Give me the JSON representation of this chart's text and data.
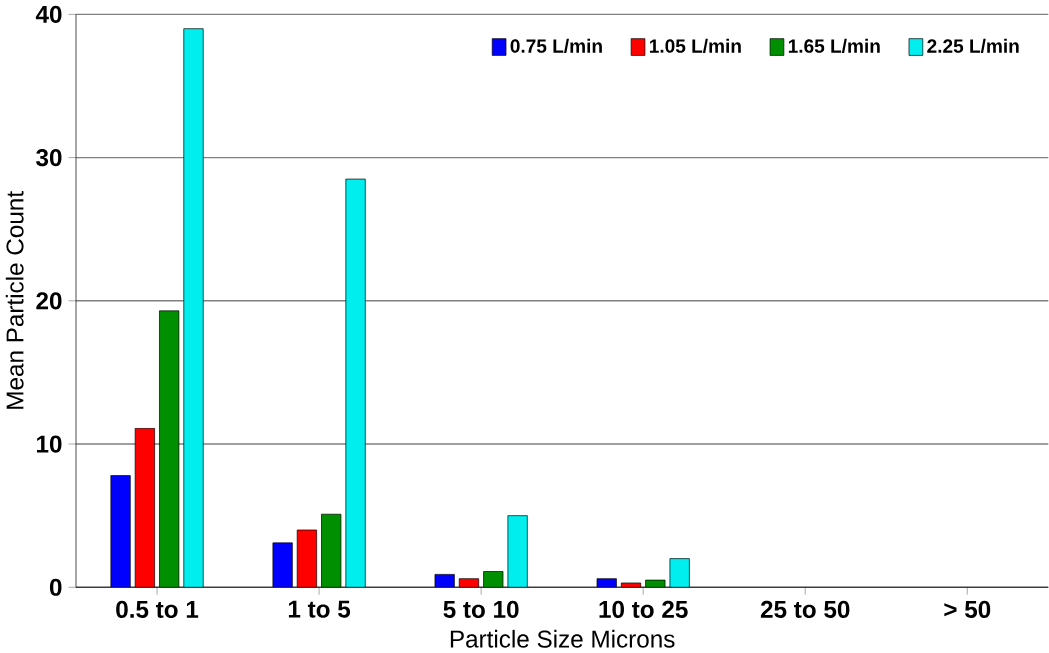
{
  "chart_data": {
    "type": "bar",
    "xlabel": "Particle Size Microns",
    "ylabel": "Mean Particle Count",
    "categories": [
      "0.5 to 1",
      "1 to 5",
      "5 to 10",
      "10 to 25",
      "25 to 50",
      "> 50"
    ],
    "series": [
      {
        "name": "0.75 L/min",
        "color": "#0000ff",
        "values": [
          7.8,
          3.1,
          0.9,
          0.6,
          null,
          null
        ]
      },
      {
        "name": "1.05 L/min",
        "color": "#ff0000",
        "values": [
          11.1,
          4.0,
          0.6,
          0.3,
          null,
          null
        ]
      },
      {
        "name": "1.65 L/min",
        "color": "#008f00",
        "values": [
          19.3,
          5.1,
          1.1,
          0.5,
          null,
          null
        ]
      },
      {
        "name": "2.25 L/min",
        "color": "#00eeee",
        "values": [
          39.0,
          28.5,
          5.0,
          2.0,
          null,
          null
        ]
      }
    ],
    "ylim": [
      0,
      40
    ],
    "yticks": [
      0,
      10,
      20,
      30,
      40
    ],
    "grid": "y",
    "legend": "top right"
  }
}
